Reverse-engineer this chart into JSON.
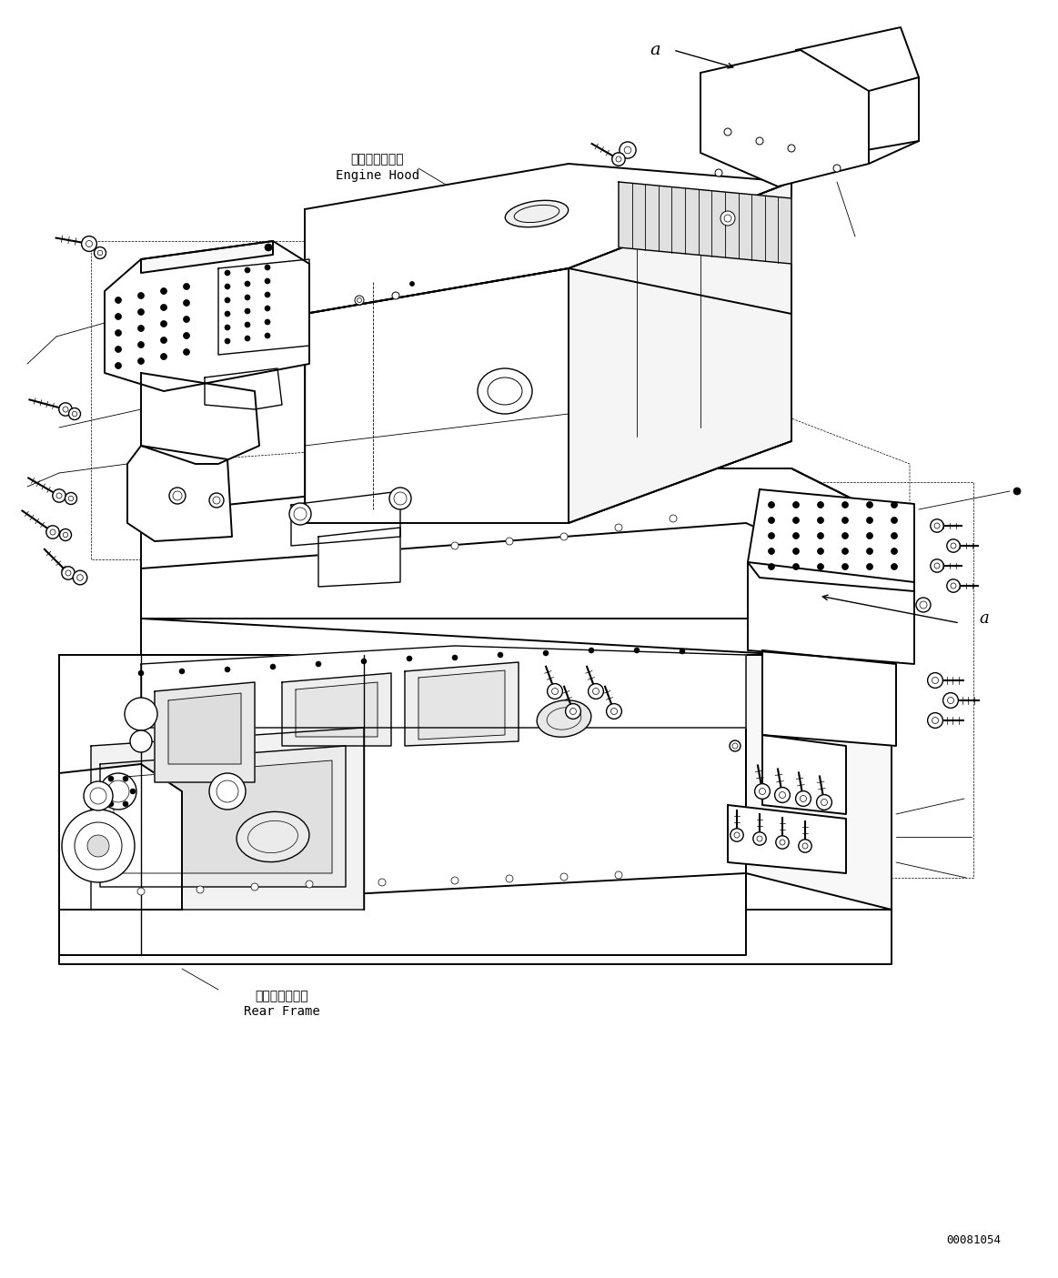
{
  "background_color": "#ffffff",
  "line_color": "#000000",
  "diagram_id": "00081054",
  "labels": {
    "engine_hood_jp": "エンジンフード",
    "engine_hood_en": "Engine Hood",
    "rear_frame_jp": "リヤーフレーム",
    "rear_frame_en": "Rear Frame",
    "label_a": "a"
  },
  "figsize": [
    11.63,
    14.05
  ],
  "dpi": 100
}
